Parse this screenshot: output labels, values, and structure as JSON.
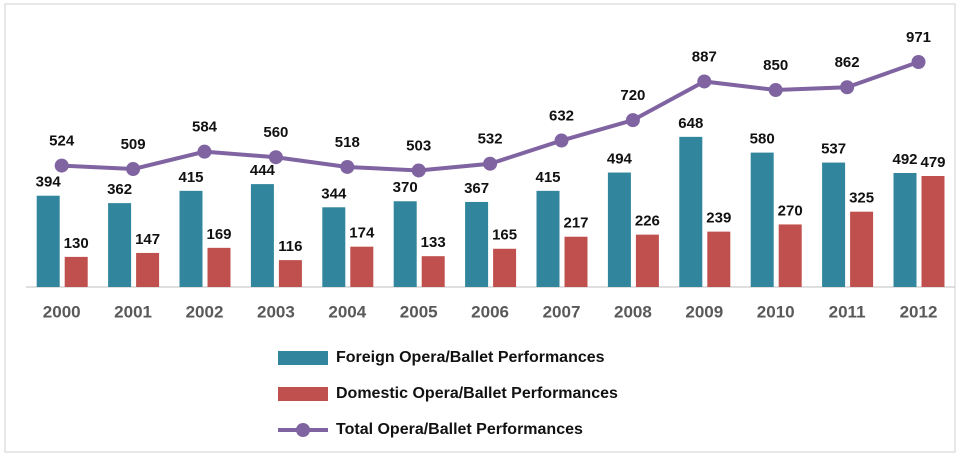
{
  "chart_data": {
    "type": "bar-line",
    "categories": [
      "2000",
      "2001",
      "2002",
      "2003",
      "2004",
      "2005",
      "2006",
      "2007",
      "2008",
      "2009",
      "2010",
      "2011",
      "2012"
    ],
    "series": [
      {
        "name": "Foreign Opera/Ballet Performances",
        "type": "bar",
        "color": "#31859c",
        "values": [
          394,
          362,
          415,
          444,
          344,
          370,
          367,
          415,
          494,
          648,
          580,
          537,
          492
        ]
      },
      {
        "name": "Domestic Opera/Ballet Performances",
        "type": "bar",
        "color": "#c0504d",
        "values": [
          130,
          147,
          169,
          116,
          174,
          133,
          165,
          217,
          226,
          239,
          270,
          325,
          479
        ]
      },
      {
        "name": "Total Opera/Ballet Performances",
        "type": "line",
        "color": "#8064a2",
        "values": [
          524,
          509,
          584,
          560,
          518,
          503,
          532,
          632,
          720,
          887,
          850,
          862,
          971
        ]
      }
    ],
    "legend": "bottom"
  }
}
